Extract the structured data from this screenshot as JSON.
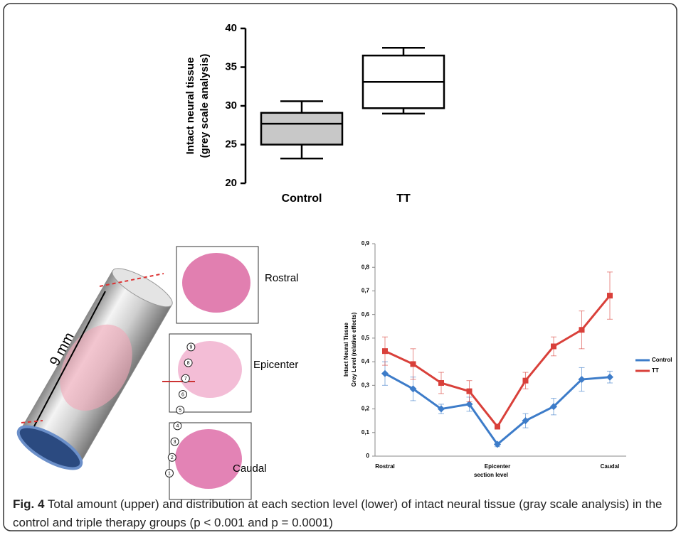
{
  "chart_data": [
    {
      "type": "box",
      "ylabel": [
        "Intact neural tissue",
        "(grey scale analysis)"
      ],
      "categories": [
        "Control",
        "TT"
      ],
      "boxes": [
        {
          "min": 23.2,
          "q1": 25.0,
          "median": 27.7,
          "q3": 29.1,
          "max": 30.6,
          "color": "#c8c8c8"
        },
        {
          "min": 29.0,
          "q1": 29.7,
          "median": 33.1,
          "q3": 36.5,
          "max": 37.5,
          "color": "#ffffff"
        }
      ],
      "ylim": [
        20,
        40
      ],
      "yticks": [
        20,
        25,
        30,
        35,
        40
      ]
    },
    {
      "type": "line",
      "ylabel": [
        "Intact Neural Tissue",
        "Grey Level (relative effects)"
      ],
      "xlabel": "section level",
      "categories": [
        "Rostral",
        null,
        null,
        null,
        "Epicenter",
        null,
        null,
        null,
        "Caudal"
      ],
      "series": [
        {
          "name": "Control",
          "color": "#3d7cc9",
          "marker": "diamond",
          "values": [
            0.35,
            0.285,
            0.2,
            0.22,
            0.05,
            0.15,
            0.21,
            0.325,
            0.335
          ],
          "errors": [
            0.05,
            0.05,
            0.02,
            0.03,
            0.01,
            0.03,
            0.035,
            0.05,
            0.025
          ]
        },
        {
          "name": "TT",
          "color": "#d9403a",
          "marker": "square",
          "values": [
            0.445,
            0.39,
            0.31,
            0.275,
            0.125,
            0.32,
            0.465,
            0.535,
            0.68
          ],
          "errors": [
            0.06,
            0.065,
            0.045,
            0.045,
            0.01,
            0.035,
            0.04,
            0.08,
            0.1
          ]
        }
      ],
      "ylim": [
        0,
        0.9
      ],
      "yticks": [
        0,
        {
          "value": 0.1,
          "label": "0,1"
        },
        {
          "value": 0.2,
          "label": "0,2"
        },
        {
          "value": 0.3,
          "label": "0,3"
        },
        {
          "value": 0.4,
          "label": "0,4"
        },
        {
          "value": 0.5,
          "label": "0,5"
        },
        {
          "value": 0.6,
          "label": "0,6"
        },
        {
          "value": 0.7,
          "label": "0,7"
        },
        {
          "value": 0.8,
          "label": "0,8"
        },
        {
          "value": 0.9,
          "label": "0,9"
        }
      ],
      "legend": "right"
    }
  ],
  "diagram": {
    "length": "9 mm",
    "sections": [
      "Rostral",
      "Epicenter",
      "Caudal"
    ],
    "pins": [
      1,
      2,
      3,
      4,
      5,
      6,
      7,
      8,
      9
    ]
  },
  "caption": {
    "label": "Fig. 4",
    "text": "Total amount (upper) and distribution at each section level (lower) of intact neural tissue (gray scale analysis) in the control and triple therapy groups (p < 0.001 and p = 0.0001)"
  }
}
